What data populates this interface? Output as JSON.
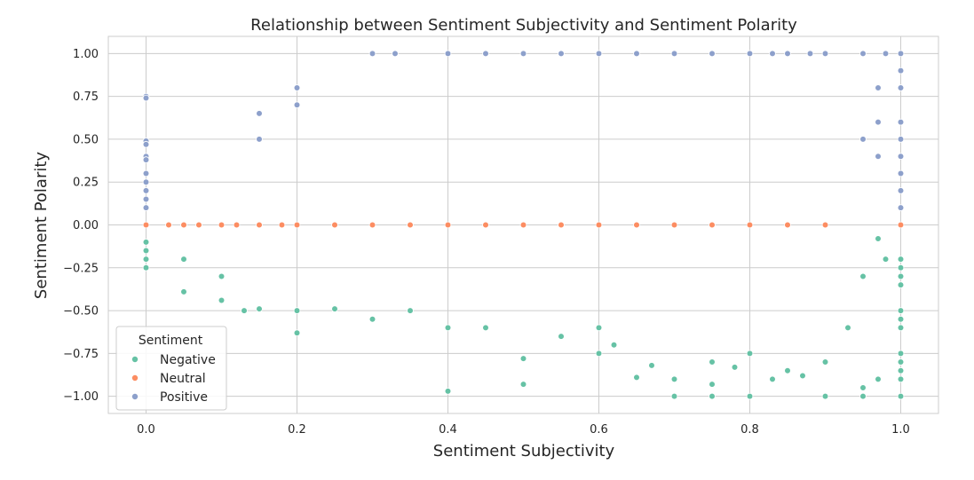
{
  "chart_data": {
    "type": "scatter",
    "title": "Relationship between Sentiment Subjectivity and Sentiment Polarity",
    "xlabel": "Sentiment Subjectivity",
    "ylabel": "Sentiment Polarity",
    "xlim": [
      -0.05,
      1.05
    ],
    "ylim": [
      -1.1,
      1.1
    ],
    "xticks": [
      0.0,
      0.2,
      0.4,
      0.6,
      0.8,
      1.0
    ],
    "xtick_labels": [
      "0.0",
      "0.2",
      "0.4",
      "0.6",
      "0.8",
      "1.0"
    ],
    "yticks": [
      1.0,
      0.75,
      0.5,
      0.25,
      0.0,
      -0.25,
      -0.5,
      -0.75,
      -1.0
    ],
    "ytick_labels": [
      "1.00",
      "0.75",
      "0.50",
      "0.25",
      "0.00",
      "−0.25",
      "−0.50",
      "−0.75",
      "−1.00"
    ],
    "grid": true,
    "legend": {
      "title": "Sentiment",
      "placement": "lower-left"
    },
    "series": [
      {
        "name": "Negative",
        "color": "#66c2a5",
        "points": [
          [
            0.0,
            -0.1
          ],
          [
            0.0,
            -0.15
          ],
          [
            0.0,
            -0.2
          ],
          [
            0.0,
            -0.25
          ],
          [
            0.05,
            -0.39
          ],
          [
            0.05,
            -0.2
          ],
          [
            0.1,
            -0.44
          ],
          [
            0.1,
            -0.3
          ],
          [
            0.13,
            -0.5
          ],
          [
            0.15,
            -0.49
          ],
          [
            0.2,
            -0.63
          ],
          [
            0.2,
            -0.5
          ],
          [
            0.25,
            -0.49
          ],
          [
            0.3,
            -0.55
          ],
          [
            0.35,
            -0.5
          ],
          [
            0.4,
            -0.6
          ],
          [
            0.4,
            -0.97
          ],
          [
            0.45,
            -0.6
          ],
          [
            0.5,
            -0.78
          ],
          [
            0.5,
            -0.93
          ],
          [
            0.55,
            -0.65
          ],
          [
            0.6,
            -0.6
          ],
          [
            0.6,
            -0.75
          ],
          [
            0.62,
            -0.7
          ],
          [
            0.65,
            -0.89
          ],
          [
            0.67,
            -0.82
          ],
          [
            0.7,
            -0.9
          ],
          [
            0.7,
            -1.0
          ],
          [
            0.75,
            -1.0
          ],
          [
            0.75,
            -0.93
          ],
          [
            0.75,
            -0.8
          ],
          [
            0.78,
            -0.83
          ],
          [
            0.8,
            -0.75
          ],
          [
            0.8,
            -1.0
          ],
          [
            0.83,
            -0.9
          ],
          [
            0.85,
            -0.85
          ],
          [
            0.87,
            -0.88
          ],
          [
            0.9,
            -1.0
          ],
          [
            0.9,
            -0.8
          ],
          [
            0.93,
            -0.6
          ],
          [
            0.95,
            -0.95
          ],
          [
            0.95,
            -1.0
          ],
          [
            0.97,
            -0.9
          ],
          [
            1.0,
            -0.5
          ],
          [
            1.0,
            -0.55
          ],
          [
            1.0,
            -0.6
          ],
          [
            1.0,
            -0.75
          ],
          [
            1.0,
            -0.8
          ],
          [
            1.0,
            -0.85
          ],
          [
            1.0,
            -0.9
          ],
          [
            1.0,
            -1.0
          ],
          [
            1.0,
            -0.3
          ],
          [
            1.0,
            -0.25
          ],
          [
            1.0,
            -0.2
          ],
          [
            1.0,
            -0.35
          ],
          [
            0.97,
            -0.08
          ],
          [
            0.98,
            -0.2
          ],
          [
            0.95,
            -0.3
          ]
        ]
      },
      {
        "name": "Neutral",
        "color": "#fc8d62",
        "points": [
          [
            0.0,
            0.0
          ],
          [
            0.03,
            0.0
          ],
          [
            0.05,
            0.0
          ],
          [
            0.07,
            0.0
          ],
          [
            0.1,
            0.0
          ],
          [
            0.12,
            0.0
          ],
          [
            0.15,
            0.0
          ],
          [
            0.18,
            0.0
          ],
          [
            0.2,
            0.0
          ],
          [
            0.25,
            0.0
          ],
          [
            0.3,
            0.0
          ],
          [
            0.35,
            0.0
          ],
          [
            0.4,
            0.0
          ],
          [
            0.45,
            0.0
          ],
          [
            0.5,
            0.0
          ],
          [
            0.55,
            0.0
          ],
          [
            0.6,
            0.0
          ],
          [
            0.65,
            0.0
          ],
          [
            0.7,
            0.0
          ],
          [
            0.75,
            0.0
          ],
          [
            0.8,
            0.0
          ],
          [
            0.85,
            0.0
          ],
          [
            0.9,
            0.0
          ],
          [
            1.0,
            0.0
          ]
        ]
      },
      {
        "name": "Positive",
        "color": "#8da0cb",
        "points": [
          [
            0.0,
            0.75
          ],
          [
            0.0,
            0.74
          ],
          [
            0.0,
            0.49
          ],
          [
            0.0,
            0.47
          ],
          [
            0.0,
            0.4
          ],
          [
            0.0,
            0.38
          ],
          [
            0.0,
            0.3
          ],
          [
            0.0,
            0.25
          ],
          [
            0.0,
            0.2
          ],
          [
            0.0,
            0.15
          ],
          [
            0.0,
            0.1
          ],
          [
            0.15,
            0.65
          ],
          [
            0.15,
            0.5
          ],
          [
            0.2,
            0.8
          ],
          [
            0.2,
            0.7
          ],
          [
            0.3,
            1.0
          ],
          [
            0.33,
            1.0
          ],
          [
            0.4,
            1.0
          ],
          [
            0.45,
            1.0
          ],
          [
            0.5,
            1.0
          ],
          [
            0.55,
            1.0
          ],
          [
            0.6,
            1.0
          ],
          [
            0.65,
            1.0
          ],
          [
            0.7,
            1.0
          ],
          [
            0.75,
            1.0
          ],
          [
            0.8,
            1.0
          ],
          [
            0.83,
            1.0
          ],
          [
            0.85,
            1.0
          ],
          [
            0.88,
            1.0
          ],
          [
            0.9,
            1.0
          ],
          [
            0.95,
            1.0
          ],
          [
            0.98,
            1.0
          ],
          [
            1.0,
            1.0
          ],
          [
            1.0,
            0.9
          ],
          [
            1.0,
            0.8
          ],
          [
            1.0,
            0.6
          ],
          [
            1.0,
            0.5
          ],
          [
            1.0,
            0.4
          ],
          [
            1.0,
            0.3
          ],
          [
            1.0,
            0.2
          ],
          [
            1.0,
            0.1
          ],
          [
            0.97,
            0.4
          ],
          [
            0.97,
            0.6
          ],
          [
            0.97,
            0.8
          ],
          [
            0.95,
            0.5
          ]
        ]
      }
    ]
  }
}
